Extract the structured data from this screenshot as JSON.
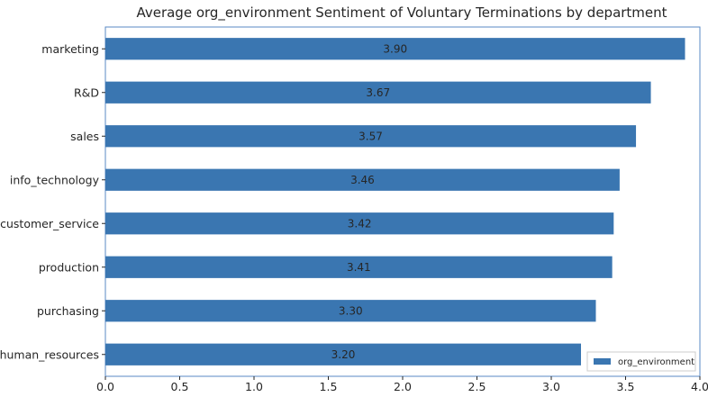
{
  "chart_data": {
    "type": "bar",
    "orientation": "horizontal",
    "title": "Average org_environment Sentiment of Voluntary Terminations by department",
    "xlabel": "",
    "ylabel": "",
    "categories": [
      "marketing",
      "R&D",
      "sales",
      "info_technology",
      "customer_service",
      "production",
      "purchasing",
      "human_resources"
    ],
    "series": [
      {
        "name": "org_environment",
        "values": [
          3.9,
          3.67,
          3.57,
          3.46,
          3.42,
          3.41,
          3.3,
          3.2
        ],
        "data_labels": [
          "3.90",
          "3.67",
          "3.57",
          "3.46",
          "3.42",
          "3.41",
          "3.30",
          "3.20"
        ],
        "color": "#3a76b1"
      }
    ],
    "xlim": [
      0,
      4.0
    ],
    "xticks": [
      "0.0",
      "0.5",
      "1.0",
      "1.5",
      "2.0",
      "2.5",
      "3.0",
      "3.5",
      "4.0"
    ],
    "grid": false,
    "legend_position": "bottom-right"
  }
}
